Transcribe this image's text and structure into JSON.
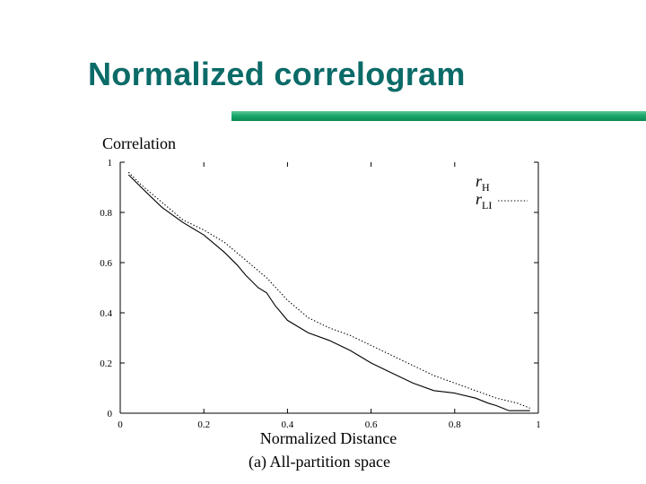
{
  "slide": {
    "title": "Normalized correlogram",
    "title_color": "#0b6b68",
    "accent_bar_color": "#1aa86c"
  },
  "chart_data": {
    "type": "line",
    "ylabel": "Correlation",
    "xlabel": "Normalized Distance",
    "caption": "(a) All-partition space",
    "xlim": [
      0,
      1
    ],
    "ylim": [
      0,
      1
    ],
    "x_ticks": [
      "0",
      "0.2",
      "0.4",
      "0.6",
      "0.8",
      "1"
    ],
    "y_ticks": [
      "0",
      "0.2",
      "0.4",
      "0.6",
      "0.8",
      "1"
    ],
    "grid": false,
    "legend_placement": "top-right",
    "series": [
      {
        "name": "r",
        "name_sub": "H",
        "style": "solid",
        "x": [
          0.02,
          0.05,
          0.1,
          0.15,
          0.2,
          0.25,
          0.28,
          0.3,
          0.33,
          0.35,
          0.37,
          0.4,
          0.45,
          0.5,
          0.55,
          0.58,
          0.6,
          0.65,
          0.7,
          0.75,
          0.8,
          0.85,
          0.88,
          0.9,
          0.93,
          0.95,
          0.98
        ],
        "y": [
          0.95,
          0.9,
          0.82,
          0.76,
          0.71,
          0.64,
          0.59,
          0.55,
          0.5,
          0.48,
          0.43,
          0.37,
          0.32,
          0.29,
          0.25,
          0.22,
          0.2,
          0.16,
          0.12,
          0.09,
          0.08,
          0.06,
          0.04,
          0.03,
          0.01,
          0.01,
          0.01
        ]
      },
      {
        "name": "r",
        "name_sub": "LI",
        "style": "dotted",
        "x": [
          0.02,
          0.05,
          0.1,
          0.15,
          0.2,
          0.25,
          0.3,
          0.35,
          0.4,
          0.45,
          0.5,
          0.55,
          0.6,
          0.65,
          0.7,
          0.75,
          0.8,
          0.85,
          0.9,
          0.95,
          0.98
        ],
        "y": [
          0.96,
          0.91,
          0.84,
          0.77,
          0.73,
          0.68,
          0.61,
          0.54,
          0.45,
          0.38,
          0.34,
          0.31,
          0.27,
          0.23,
          0.19,
          0.15,
          0.12,
          0.09,
          0.06,
          0.04,
          0.02
        ]
      }
    ]
  }
}
